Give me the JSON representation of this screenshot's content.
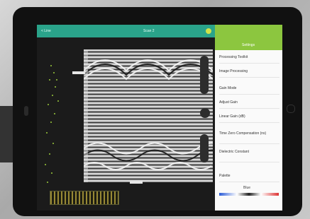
{
  "topbar": {
    "back": "< Line",
    "title": "Scan 2"
  },
  "settings": {
    "title": "Settings",
    "items": [
      "Processing Toolkit",
      "Image Processing",
      "Gain Mode",
      "Adjust Gain",
      "Linear Gain (dB)",
      "Time Zero Compensation (ns)",
      "Dielectric Constant",
      "Palette"
    ],
    "palette": "Blue"
  }
}
